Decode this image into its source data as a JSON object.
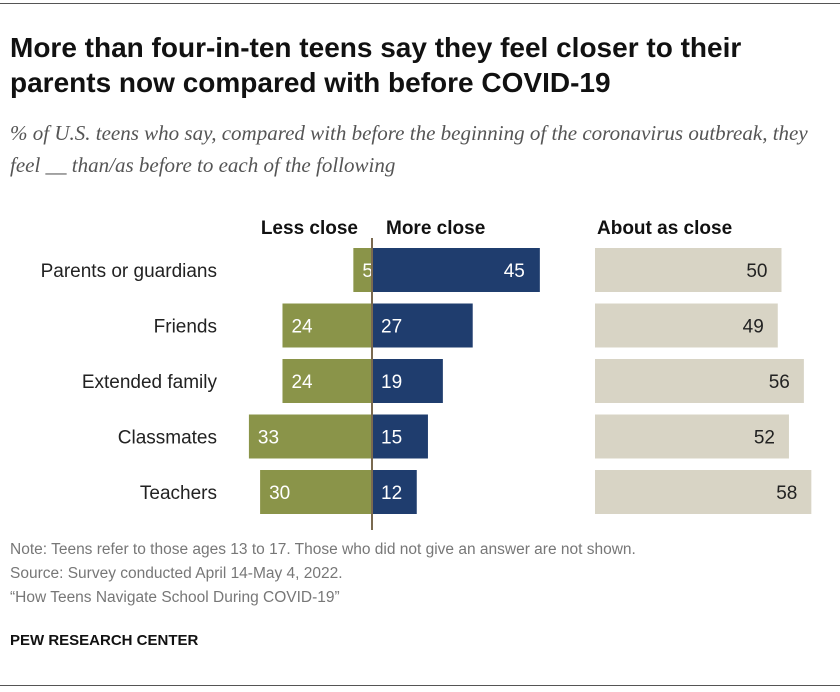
{
  "title": "More than four-in-ten teens say they feel closer to their parents now compared with before COVID-19",
  "subtitle": "% of U.S. teens who say, compared with before the beginning of the coronavirus outbreak, they feel __ than/as before to each of the following",
  "note_lines": [
    "Note: Teens refer to those ages 13 to 17. Those who did not give an answer are not shown.",
    "Source: Survey conducted April 14-May 4, 2022.",
    "“How Teens Navigate School During COVID-19”"
  ],
  "brand": "PEW RESEARCH CENTER",
  "chart_data": {
    "type": "bar",
    "orientation": "horizontal",
    "categories": [
      "Parents or guardians",
      "Friends",
      "Extended family",
      "Classmates",
      "Teachers"
    ],
    "series": [
      {
        "name": "Less close",
        "values": [
          5,
          24,
          24,
          33,
          30
        ],
        "color": "#8a9449"
      },
      {
        "name": "More close",
        "values": [
          45,
          27,
          19,
          15,
          12
        ],
        "color": "#1f3d6e"
      },
      {
        "name": "About as close",
        "values": [
          50,
          49,
          56,
          52,
          58
        ],
        "color": "#d8d4c5"
      }
    ],
    "xlim": [
      0,
      100
    ],
    "grid": false
  }
}
